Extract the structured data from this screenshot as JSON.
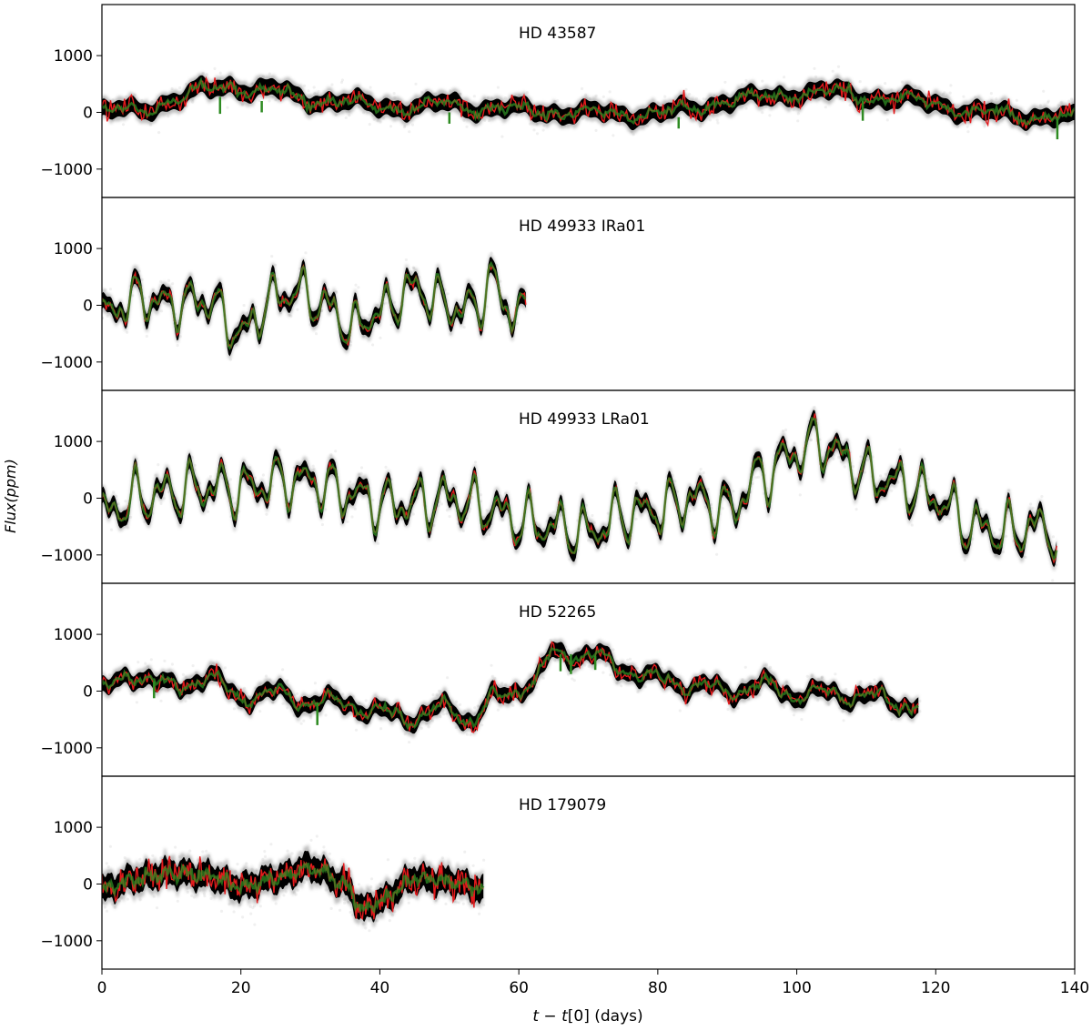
{
  "chart_data": {
    "type": "line",
    "layout": "stacked-panels-shared-x",
    "xlabel": "t − t[0] (days)",
    "ylabel": "Flux(ppm)",
    "xlim": [
      0,
      140
    ],
    "ylim": [
      -1500,
      1900
    ],
    "xticks": [
      0,
      20,
      40,
      60,
      80,
      100,
      120,
      140
    ],
    "yticks": [
      -1000,
      0,
      1000
    ],
    "grid": false,
    "legend": "none",
    "colors": {
      "observed": "#000000",
      "model_red": "#e41a1c",
      "model_green": "#2e8b22"
    },
    "panels": [
      {
        "title": "HD 43587",
        "x_end": 140,
        "noise": 130,
        "band": 200,
        "step": 0.25,
        "waves": [
          [
            220,
            0.0072,
            2.0
          ],
          [
            70,
            0.55,
            0.3
          ],
          [
            50,
            1.35,
            1.8
          ],
          [
            30,
            3.1,
            0.7
          ]
        ],
        "dips": [
          [
            17,
            -300
          ],
          [
            23,
            -200
          ],
          [
            50,
            -200
          ],
          [
            83,
            -200
          ],
          [
            109.5,
            -350
          ],
          [
            137.5,
            -350
          ]
        ],
        "anchors": [
          [
            0,
            -200
          ],
          [
            5,
            -150
          ],
          [
            10,
            0
          ],
          [
            15,
            200
          ],
          [
            18,
            300
          ],
          [
            22,
            200
          ],
          [
            25,
            200
          ],
          [
            30,
            50
          ],
          [
            35,
            0
          ],
          [
            40,
            -50
          ],
          [
            45,
            -80
          ],
          [
            50,
            0
          ],
          [
            55,
            -80
          ],
          [
            60,
            -100
          ],
          [
            70,
            -150
          ],
          [
            80,
            -150
          ],
          [
            85,
            -50
          ],
          [
            90,
            100
          ],
          [
            95,
            150
          ],
          [
            100,
            250
          ],
          [
            105,
            280
          ],
          [
            110,
            200
          ],
          [
            115,
            150
          ],
          [
            120,
            100
          ],
          [
            125,
            -50
          ],
          [
            130,
            -80
          ],
          [
            135,
            -100
          ],
          [
            140,
            -150
          ]
        ]
      },
      {
        "title": "HD 49933 IRa01",
        "x_end": 61,
        "noise": 60,
        "band": 190,
        "step": 0.2,
        "waves": [
          [
            280,
            1.58,
            0.2
          ],
          [
            150,
            2.6,
            1.3
          ],
          [
            80,
            4.3,
            2.1
          ]
        ],
        "dips": [],
        "anchors": [
          [
            0,
            -200
          ],
          [
            5,
            150
          ],
          [
            10,
            0
          ],
          [
            15,
            100
          ],
          [
            20,
            -500
          ],
          [
            25,
            150
          ],
          [
            28,
            250
          ],
          [
            32,
            0
          ],
          [
            36,
            -400
          ],
          [
            40,
            -100
          ],
          [
            45,
            300
          ],
          [
            48,
            100
          ],
          [
            52,
            -100
          ],
          [
            55,
            100
          ],
          [
            56,
            500
          ],
          [
            58,
            0
          ],
          [
            61,
            -200
          ]
        ]
      },
      {
        "title": "HD 49933 LRa01",
        "x_end": 137.5,
        "noise": 60,
        "band": 190,
        "step": 0.2,
        "waves": [
          [
            320,
            1.55,
            0.4
          ],
          [
            170,
            2.45,
            2.2
          ],
          [
            90,
            4.1,
            1.0
          ]
        ],
        "dips": [],
        "anchors": [
          [
            0,
            -300
          ],
          [
            5,
            0
          ],
          [
            10,
            100
          ],
          [
            15,
            200
          ],
          [
            20,
            150
          ],
          [
            25,
            300
          ],
          [
            30,
            300
          ],
          [
            35,
            100
          ],
          [
            40,
            -100
          ],
          [
            45,
            -100
          ],
          [
            50,
            0
          ],
          [
            55,
            -150
          ],
          [
            60,
            -400
          ],
          [
            65,
            -500
          ],
          [
            70,
            -600
          ],
          [
            75,
            -300
          ],
          [
            80,
            -200
          ],
          [
            85,
            0
          ],
          [
            90,
            -200
          ],
          [
            95,
            400
          ],
          [
            100,
            800
          ],
          [
            103,
            1000
          ],
          [
            107,
            700
          ],
          [
            110,
            400
          ],
          [
            115,
            250
          ],
          [
            120,
            0
          ],
          [
            125,
            -500
          ],
          [
            130,
            -600
          ],
          [
            135,
            -500
          ],
          [
            137.5,
            -650
          ]
        ]
      },
      {
        "title": "HD 52265",
        "x_end": 117.5,
        "noise": 110,
        "band": 190,
        "step": 0.25,
        "waves": [
          [
            110,
            0.8,
            0.5
          ],
          [
            60,
            1.9,
            2.0
          ],
          [
            35,
            3.7,
            1.1
          ]
        ],
        "dips": [
          [
            7.5,
            -300
          ],
          [
            31,
            -400
          ],
          [
            66,
            -300
          ],
          [
            67.5,
            -350
          ],
          [
            71,
            -250
          ]
        ],
        "anchors": [
          [
            0,
            0
          ],
          [
            5,
            300
          ],
          [
            10,
            50
          ],
          [
            15,
            250
          ],
          [
            20,
            -100
          ],
          [
            25,
            -50
          ],
          [
            30,
            -200
          ],
          [
            35,
            -200
          ],
          [
            40,
            -400
          ],
          [
            45,
            -450
          ],
          [
            50,
            -300
          ],
          [
            53,
            -500
          ],
          [
            57,
            -100
          ],
          [
            62,
            150
          ],
          [
            65,
            650
          ],
          [
            70,
            650
          ],
          [
            75,
            400
          ],
          [
            80,
            200
          ],
          [
            85,
            100
          ],
          [
            90,
            0
          ],
          [
            95,
            100
          ],
          [
            100,
            -50
          ],
          [
            105,
            -50
          ],
          [
            110,
            -100
          ],
          [
            117.5,
            -250
          ]
        ]
      },
      {
        "title": "HD 179079",
        "x_end": 55,
        "noise": 180,
        "band": 300,
        "step": 0.15,
        "waves": [
          [
            60,
            2.2,
            0.0
          ],
          [
            40,
            4.9,
            1.7
          ],
          [
            25,
            9.1,
            0.6
          ]
        ],
        "dips": [],
        "anchors": [
          [
            0,
            -100
          ],
          [
            5,
            100
          ],
          [
            10,
            200
          ],
          [
            15,
            150
          ],
          [
            20,
            -50
          ],
          [
            25,
            100
          ],
          [
            30,
            300
          ],
          [
            35,
            0
          ],
          [
            37.5,
            -450
          ],
          [
            40,
            -300
          ],
          [
            45,
            100
          ],
          [
            50,
            50
          ],
          [
            55,
            -100
          ]
        ]
      }
    ]
  }
}
